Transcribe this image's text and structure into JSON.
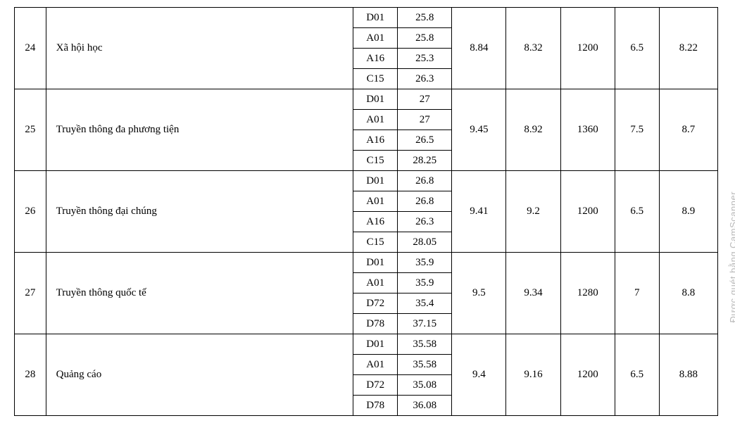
{
  "watermark": "Được quét bằng CamScanner",
  "col_widths": {
    "idx": 44,
    "name": 430,
    "code": 62,
    "score": 76,
    "a": 76,
    "b": 76,
    "c": 76,
    "d": 62,
    "e": 82
  },
  "rows": [
    {
      "idx": "24",
      "name": "Xã hội học",
      "sub": [
        {
          "code": "D01",
          "score": "25.8"
        },
        {
          "code": "A01",
          "score": "25.8"
        },
        {
          "code": "A16",
          "score": "25.3"
        },
        {
          "code": "C15",
          "score": "26.3"
        }
      ],
      "a": "8.84",
      "b": "8.32",
      "c": "1200",
      "d": "6.5",
      "e": "8.22"
    },
    {
      "idx": "25",
      "name": "Truyền thông đa phương tiện",
      "sub": [
        {
          "code": "D01",
          "score": "27"
        },
        {
          "code": "A01",
          "score": "27"
        },
        {
          "code": "A16",
          "score": "26.5"
        },
        {
          "code": "C15",
          "score": "28.25"
        }
      ],
      "a": "9.45",
      "b": "8.92",
      "c": "1360",
      "d": "7.5",
      "e": "8.7"
    },
    {
      "idx": "26",
      "name": "Truyền thông đại chúng",
      "sub": [
        {
          "code": "D01",
          "score": "26.8"
        },
        {
          "code": "A01",
          "score": "26.8"
        },
        {
          "code": "A16",
          "score": "26.3"
        },
        {
          "code": "C15",
          "score": "28.05"
        }
      ],
      "a": "9.41",
      "b": "9.2",
      "c": "1200",
      "d": "6.5",
      "e": "8.9"
    },
    {
      "idx": "27",
      "name": "Truyền thông quốc tế",
      "sub": [
        {
          "code": "D01",
          "score": "35.9"
        },
        {
          "code": "A01",
          "score": "35.9"
        },
        {
          "code": "D72",
          "score": "35.4"
        },
        {
          "code": "D78",
          "score": "37.15"
        }
      ],
      "a": "9.5",
      "b": "9.34",
      "c": "1280",
      "d": "7",
      "e": "8.8"
    },
    {
      "idx": "28",
      "name": "Quảng cáo",
      "sub": [
        {
          "code": "D01",
          "score": "35.58"
        },
        {
          "code": "A01",
          "score": "35.58"
        },
        {
          "code": "D72",
          "score": "35.08"
        },
        {
          "code": "D78",
          "score": "36.08"
        }
      ],
      "a": "9.4",
      "b": "9.16",
      "c": "1200",
      "d": "6.5",
      "e": "8.88"
    }
  ]
}
